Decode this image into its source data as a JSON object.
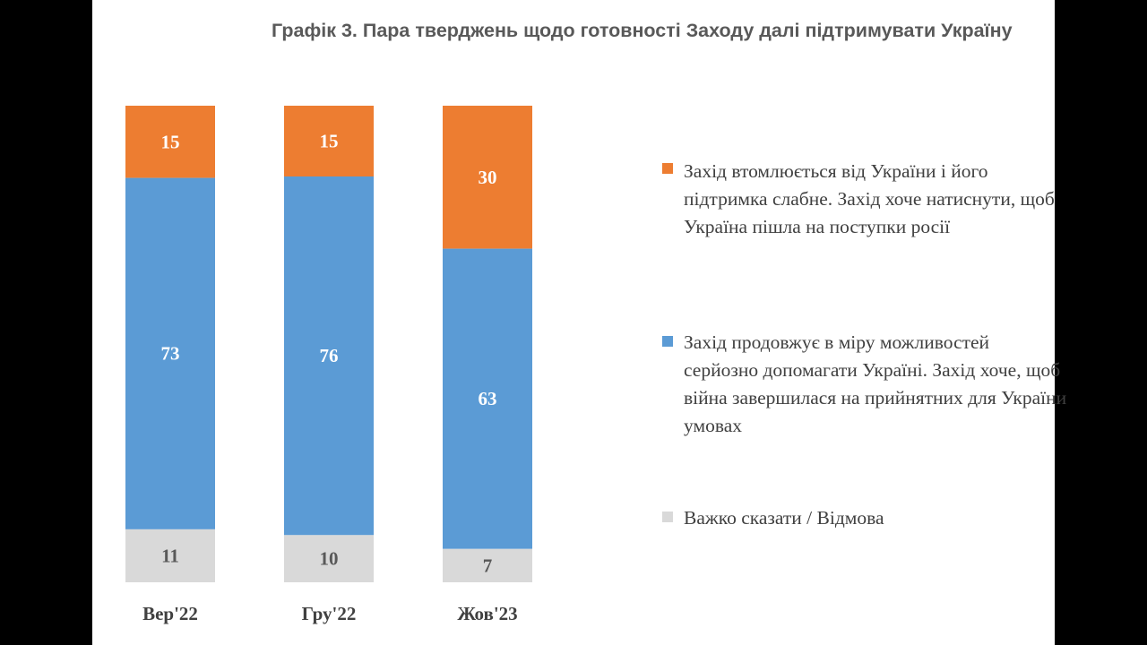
{
  "colors": {
    "orange": "#ed7d31",
    "blue": "#5b9bd5",
    "gray": "#d9d9d9"
  },
  "chart_data": {
    "type": "bar",
    "stacked": true,
    "title": "Графік 3. Пара тверджень щодо готовності Заходу далі підтримувати Україну",
    "categories": [
      "Вер'22",
      "Гру'22",
      "Жов'23"
    ],
    "series": [
      {
        "name": "Захід втомлюється від України і його підтримка слабне. Захід хоче натиснути, щоб Україна пішла на поступки росії",
        "color": "#ed7d31",
        "values": [
          15,
          15,
          30
        ]
      },
      {
        "name": "Захід продовжує в міру можливостей серйозно допомагати Україні. Захід хоче, щоб війна завершилася на прийнятних для України умовах",
        "color": "#5b9bd5",
        "values": [
          73,
          76,
          63
        ]
      },
      {
        "name": "Важко сказати / Відмова",
        "color": "#d9d9d9",
        "values": [
          11,
          10,
          7
        ]
      }
    ],
    "legend_position": "right",
    "grid": false
  },
  "legend": [
    {
      "line1": "Захід втомлюється від України і його",
      "line2": "підтримка слабне. Захід хоче натиснути, щоб",
      "line3": "Україна пішла на поступки росії"
    },
    {
      "line1": "Захід продовжує в міру можливостей",
      "line2": "серйозно допомагати Україні. Захід хоче, щоб",
      "line3": "війна завершилася на прийнятних для України",
      "line4": "умовах"
    },
    {
      "line1": "Важко сказати / Відмова"
    }
  ]
}
